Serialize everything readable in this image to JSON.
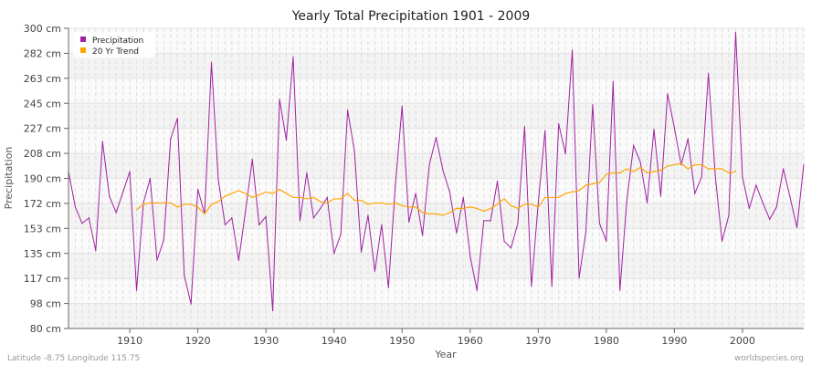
{
  "chart_data": {
    "type": "line",
    "title": "Yearly Total Precipitation 1901 - 2009",
    "xlabel": "Year",
    "ylabel": "Precipitation",
    "xlim": [
      1901,
      2009
    ],
    "ylim": [
      80,
      300
    ],
    "y_ticks": [
      "80 cm",
      "98 cm",
      "117 cm",
      "135 cm",
      "153 cm",
      "172 cm",
      "190 cm",
      "208 cm",
      "227 cm",
      "245 cm",
      "263 cm",
      "282 cm",
      "300 cm"
    ],
    "x_ticks": [
      "1910",
      "1920",
      "1930",
      "1940",
      "1950",
      "1960",
      "1970",
      "1980",
      "1990",
      "2000"
    ],
    "grid": true,
    "legend_position": "top-left",
    "series": [
      {
        "name": "Precipitation",
        "color": "#a020a0",
        "x_start": 1901,
        "values": [
          195,
          169,
          157,
          161,
          137,
          217,
          177,
          165,
          180,
          195,
          108,
          172,
          190,
          130,
          145,
          219,
          234,
          119,
          98,
          182,
          164,
          275,
          189,
          156,
          161,
          130,
          166,
          204,
          156,
          162,
          93,
          248,
          218,
          279,
          159,
          194,
          161,
          168,
          176,
          135,
          149,
          240,
          210,
          136,
          163,
          122,
          156,
          110,
          184,
          243,
          158,
          179,
          148,
          200,
          220,
          196,
          180,
          150,
          176,
          133,
          108,
          159,
          159,
          188,
          144,
          139,
          157,
          228,
          111,
          172,
          225,
          111,
          230,
          208,
          284,
          117,
          151,
          244,
          157,
          144,
          261,
          108,
          173,
          214,
          202,
          172,
          226,
          177,
          252,
          227,
          200,
          219,
          179,
          191,
          267,
          192,
          144,
          163,
          297,
          191,
          168,
          185,
          172,
          160,
          169,
          197,
          176,
          154,
          200
        ]
      },
      {
        "name": "20 Yr Trend",
        "color": "#ffa500",
        "x_start": 1911,
        "values": [
          167,
          171,
          172,
          172,
          172,
          172,
          169,
          171,
          171,
          169,
          164,
          171,
          173,
          177,
          179,
          181,
          179,
          176,
          178,
          180,
          179,
          182,
          179,
          176,
          176,
          175,
          176,
          173,
          172,
          175,
          175,
          179,
          174,
          174,
          171,
          172,
          172,
          171,
          172,
          170,
          169,
          169,
          165,
          164,
          164,
          163,
          165,
          168,
          168,
          169,
          168,
          166,
          168,
          171,
          175,
          170,
          168,
          171,
          171,
          169,
          176,
          176,
          176,
          179,
          180,
          181,
          185,
          186,
          187,
          193,
          194,
          194,
          197,
          195,
          198,
          194,
          195,
          196,
          199,
          200,
          201,
          197,
          200,
          200,
          197,
          197,
          197,
          194,
          195
        ]
      }
    ]
  },
  "footer": {
    "left": "Latitude -8.75 Longitude 115.75",
    "right": "worldspecies.org"
  }
}
